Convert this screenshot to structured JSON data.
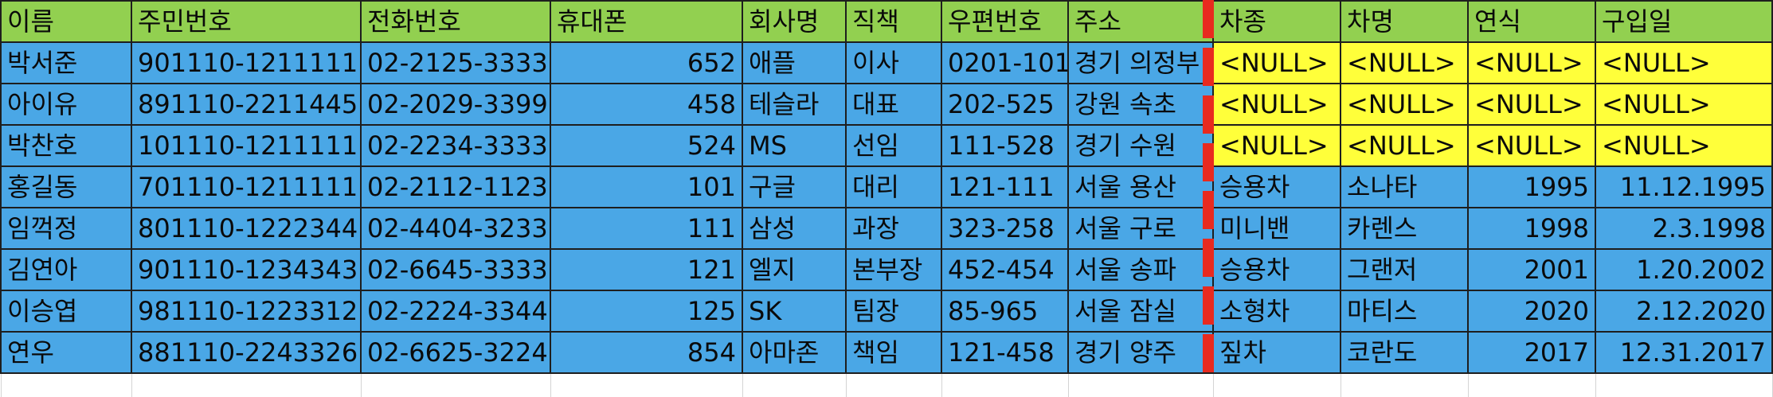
{
  "sheet": {
    "headers": [
      "이름",
      "주민번호",
      "전화번호",
      "휴대폰",
      "회사명",
      "직책",
      "우편번호",
      "주소",
      "차종",
      "차명",
      "연식",
      "구입일"
    ],
    "rows": [
      [
        "박서준",
        "901110-1211111",
        "02-2125-3333",
        "652",
        "애플",
        "이사",
        "0201-101",
        "경기 의정부",
        "<NULL>",
        "<NULL>",
        "<NULL>",
        "<NULL>"
      ],
      [
        "아이유",
        "891110-2211445",
        "02-2029-3399",
        "458",
        "테슬라",
        "대표",
        "202-525",
        "강원 속초",
        "<NULL>",
        "<NULL>",
        "<NULL>",
        "<NULL>"
      ],
      [
        "박찬호",
        "101110-1211111",
        "02-2234-3333",
        "524",
        "MS",
        "선임",
        "111-528",
        "경기 수원",
        "<NULL>",
        "<NULL>",
        "<NULL>",
        "<NULL>"
      ],
      [
        "홍길동",
        "701110-1211111",
        "02-2112-1123",
        "101",
        "구글",
        "대리",
        "121-111",
        "서울 용산",
        "승용차",
        "소나타",
        "1995",
        "11.12.1995"
      ],
      [
        "임꺽정",
        "801110-1222344",
        "02-4404-3233",
        "111",
        "삼성",
        "과장",
        "323-258",
        "서울 구로",
        "미니밴",
        "카렌스",
        "1998",
        "2.3.1998"
      ],
      [
        "김연아",
        "901110-1234343",
        "02-6645-3333",
        "121",
        "엘지",
        "본부장",
        "452-454",
        "서울 송파",
        "승용차",
        "그랜저",
        "2001",
        "1.20.2002"
      ],
      [
        "이승엽",
        "981110-1223312",
        "02-2224-3344",
        "125",
        "SK",
        "팀장",
        "85-965",
        "서울 잠실",
        "소형차",
        "마티스",
        "2020",
        "2.12.2020"
      ],
      [
        "연우",
        "881110-2243326",
        "02-6625-3224",
        "854",
        "아마존",
        "책임",
        "121-458",
        "경기 양주",
        "짚차",
        "코란도",
        "2017",
        "12.31.2017"
      ]
    ]
  },
  "colors": {
    "header_fill": "#92d050",
    "body_fill": "#4aa7e6",
    "null_fill": "#ffff3a",
    "split_line": "#e82a1f"
  }
}
